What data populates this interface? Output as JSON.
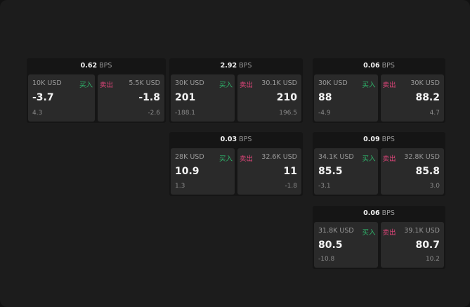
{
  "unit": "BPS",
  "buy_label": "买入",
  "sell_label": "卖出",
  "colors": {
    "buy": "#2fb56b",
    "sell": "#e0457a"
  },
  "cards": [
    {
      "spread": "0.62",
      "bid": {
        "size": "10K USD",
        "price": "-3.7",
        "change": "4.3"
      },
      "ask": {
        "size": "5.5K USD",
        "price": "-1.8",
        "change": "-2.6"
      }
    },
    {
      "spread": "2.92",
      "bid": {
        "size": "30K USD",
        "price": "201",
        "change": "-188.1"
      },
      "ask": {
        "size": "30.1K USD",
        "price": "210",
        "change": "196.5"
      }
    },
    {
      "spread": "0.06",
      "bid": {
        "size": "30K USD",
        "price": "88",
        "change": "-4.9"
      },
      "ask": {
        "size": "30K USD",
        "price": "88.2",
        "change": "4.7"
      }
    },
    {
      "spread": "0.03",
      "bid": {
        "size": "28K USD",
        "price": "10.9",
        "change": "1.3"
      },
      "ask": {
        "size": "32.6K USD",
        "price": "11",
        "change": "-1.8"
      }
    },
    {
      "spread": "0.09",
      "bid": {
        "size": "34.1K USD",
        "price": "85.5",
        "change": "-3.1"
      },
      "ask": {
        "size": "32.8K USD",
        "price": "85.8",
        "change": "3.0"
      }
    },
    {
      "spread": "0.06",
      "bid": {
        "size": "31.8K USD",
        "price": "80.5",
        "change": "-10.8"
      },
      "ask": {
        "size": "39.1K USD",
        "price": "80.7",
        "change": "10.2"
      }
    }
  ]
}
